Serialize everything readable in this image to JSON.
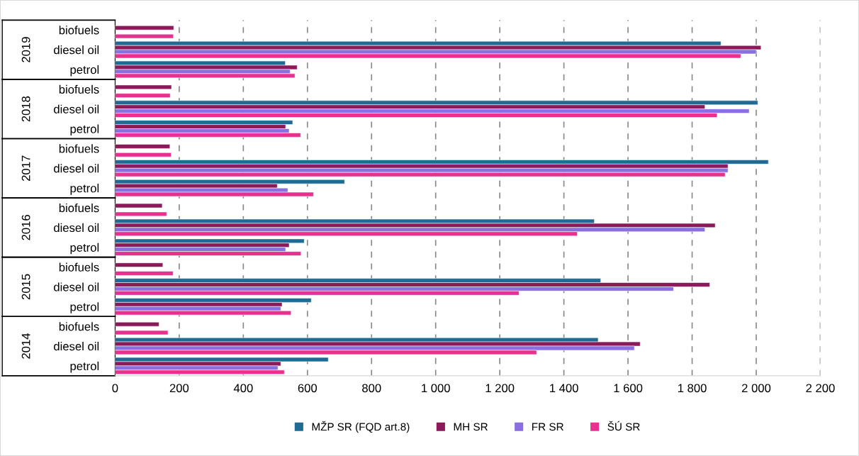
{
  "chart_data": {
    "type": "bar",
    "orientation": "horizontal",
    "categories": [
      "biofuels",
      "diesel oil",
      "petrol",
      "biofuels",
      "diesel oil",
      "petrol",
      "biofuels",
      "diesel oil",
      "petrol",
      "biofuels",
      "diesel oil",
      "petrol",
      "biofuels",
      "diesel oil",
      "petrol",
      "biofuels",
      "diesel oil",
      "petrol"
    ],
    "annotations": [
      "2019",
      "2018",
      "2017",
      "2016",
      "2015",
      "2014"
    ],
    "series": [
      {
        "name": "MŽP SR (FQD art.8)",
        "color": "#1f6b94",
        "values": [
          null,
          1890,
          531,
          null,
          2005,
          554,
          null,
          2038,
          716,
          null,
          1495,
          590,
          null,
          1515,
          612,
          null,
          1507,
          665
        ]
      },
      {
        "name": "MH SR",
        "color": "#8b1a5a",
        "values": [
          183,
          2015,
          568,
          176,
          1840,
          532,
          171,
          1912,
          506,
          147,
          1872,
          543,
          149,
          1855,
          521,
          137,
          1638,
          517
        ]
      },
      {
        "name": "FR SR",
        "color": "#8a6fe0",
        "values": [
          null,
          2000,
          546,
          null,
          1978,
          543,
          null,
          1912,
          539,
          null,
          1840,
          532,
          null,
          1742,
          517,
          null,
          1620,
          508
        ]
      },
      {
        "name": "ŠÚ SR",
        "color": "#e8318f",
        "values": [
          182,
          1952,
          561,
          172,
          1878,
          579,
          175,
          1903,
          619,
          161,
          1442,
          580,
          181,
          1260,
          549,
          165,
          1315,
          528
        ]
      }
    ],
    "xlim": [
      0,
      2200
    ],
    "xticks": [
      0,
      200,
      400,
      600,
      800,
      {
        "value": 1000,
        "label": "1 000"
      },
      {
        "value": 1200,
        "label": "1 200"
      },
      {
        "value": 1400,
        "label": "1 400"
      },
      {
        "value": 1600,
        "label": "1 600"
      },
      {
        "value": 1800,
        "label": "1 800"
      },
      {
        "value": 2000,
        "label": "2 000"
      },
      {
        "value": 2200,
        "label": "2 200"
      }
    ],
    "grid": "x",
    "line_style": "dashed",
    "legend": "bottom"
  }
}
